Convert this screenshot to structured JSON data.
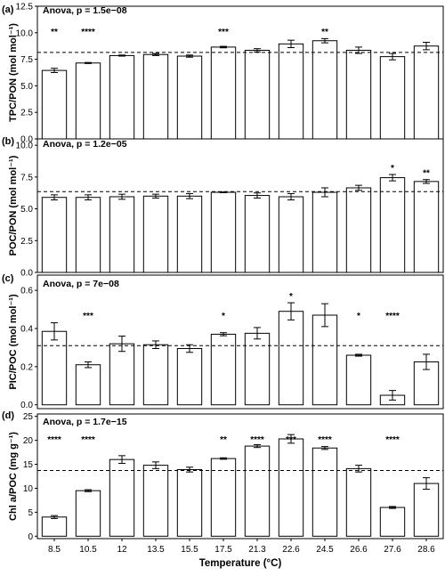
{
  "xlabel": "Temperature (°C)",
  "chart_data": [
    {
      "type": "bar",
      "panel_label": "(a)",
      "annotation": "Anova, p = 1.5e−08",
      "ylabel": "TPC/PON (mol mol⁻¹)",
      "ylim": [
        0,
        12.5
      ],
      "yticks": [
        0.0,
        2.5,
        5.0,
        7.5,
        10.0,
        12.5
      ],
      "ytick_labels": [
        "0.0",
        "2.5",
        "5.0",
        "7.5",
        "10.0",
        "12.5"
      ],
      "reference_line": 8.15,
      "categories": [
        "8.5",
        "10.5",
        "12",
        "13.5",
        "15.5",
        "17.5",
        "21.3",
        "22.6",
        "24.5",
        "26.6",
        "27.6",
        "28.6"
      ],
      "values": [
        6.45,
        7.15,
        7.85,
        7.95,
        7.8,
        8.65,
        8.35,
        8.95,
        9.25,
        8.35,
        7.75,
        8.75
      ],
      "errors": [
        0.2,
        0.05,
        0.05,
        0.1,
        0.1,
        0.07,
        0.15,
        0.35,
        0.2,
        0.3,
        0.3,
        0.35
      ],
      "significance": [
        "**",
        "****",
        "",
        "",
        "",
        "***",
        "",
        "",
        "**",
        "",
        "",
        ""
      ]
    },
    {
      "type": "bar",
      "panel_label": "(b)",
      "annotation": "Anova, p = 1.2e−05",
      "ylabel": "POC/PON (mol mol⁻¹)",
      "ylim": [
        0,
        10.5
      ],
      "yticks": [
        0.0,
        2.5,
        5.0,
        7.5,
        10.0
      ],
      "ytick_labels": [
        "0.0",
        "2.5",
        "5.0",
        "7.5",
        "10.0"
      ],
      "reference_line": 6.35,
      "categories": [
        "8.5",
        "10.5",
        "12",
        "13.5",
        "15.5",
        "17.5",
        "21.3",
        "22.6",
        "24.5",
        "26.6",
        "27.6",
        "28.6"
      ],
      "values": [
        5.9,
        5.9,
        5.95,
        6.0,
        6.0,
        6.3,
        6.05,
        5.95,
        6.3,
        6.65,
        7.45,
        7.15
      ],
      "errors": [
        0.2,
        0.2,
        0.2,
        0.15,
        0.2,
        0.03,
        0.2,
        0.25,
        0.35,
        0.2,
        0.25,
        0.15
      ],
      "significance": [
        "",
        "",
        "",
        "",
        "",
        "",
        "",
        "",
        "",
        "",
        "*",
        "**"
      ]
    },
    {
      "type": "bar",
      "panel_label": "(c)",
      "annotation": "Anova, p = 7e−08",
      "ylabel": "PIC/POC (mol mol⁻¹)",
      "ylim": [
        -0.02,
        0.68
      ],
      "yticks": [
        0.0,
        0.2,
        0.4,
        0.6
      ],
      "ytick_labels": [
        "0.0",
        "0.2",
        "0.4",
        "0.6"
      ],
      "reference_line": 0.31,
      "categories": [
        "8.5",
        "10.5",
        "12",
        "13.5",
        "15.5",
        "17.5",
        "21.3",
        "22.6",
        "24.5",
        "26.6",
        "27.6",
        "28.6"
      ],
      "values": [
        0.385,
        0.21,
        0.32,
        0.315,
        0.295,
        0.37,
        0.375,
        0.49,
        0.47,
        0.26,
        0.05,
        0.225
      ],
      "errors": [
        0.045,
        0.015,
        0.04,
        0.02,
        0.02,
        0.008,
        0.03,
        0.045,
        0.06,
        0.005,
        0.025,
        0.04
      ],
      "significance": [
        "",
        "***",
        "",
        "",
        "",
        "*",
        "",
        "*",
        "",
        "*",
        "****",
        ""
      ]
    },
    {
      "type": "bar",
      "panel_label": "(d)",
      "annotation": "Anova, p = 1.7e−15",
      "ylabel": "Chl a/POC (mg g⁻¹)",
      "ylim": [
        -0.5,
        25.5
      ],
      "yticks": [
        0,
        5,
        10,
        15,
        20,
        25
      ],
      "ytick_labels": [
        "0",
        "5",
        "10",
        "15",
        "20",
        "25"
      ],
      "reference_line": 13.7,
      "categories": [
        "8.5",
        "10.5",
        "12",
        "13.5",
        "15.5",
        "17.5",
        "21.3",
        "22.6",
        "24.5",
        "26.6",
        "27.6",
        "28.6"
      ],
      "values": [
        4.0,
        9.5,
        16.0,
        14.8,
        13.9,
        16.2,
        18.8,
        20.3,
        18.4,
        14.1,
        6.0,
        11.0
      ],
      "errors": [
        0.3,
        0.2,
        0.8,
        0.7,
        0.5,
        0.15,
        0.3,
        0.9,
        0.3,
        0.7,
        0.2,
        1.2
      ],
      "significance": [
        "****",
        "****",
        "",
        "",
        "",
        "**",
        "****",
        "***",
        "****",
        "",
        "****",
        ""
      ]
    }
  ]
}
